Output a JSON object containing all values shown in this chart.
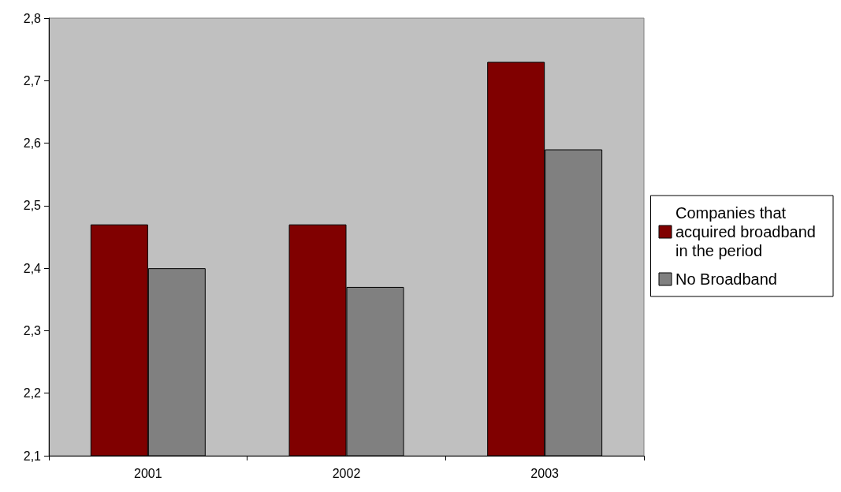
{
  "chart_data": {
    "type": "bar",
    "categories": [
      "2001",
      "2002",
      "2003"
    ],
    "series": [
      {
        "name": "Companies that acquired broadband in the period",
        "color": "#800000",
        "values": [
          2.47,
          2.47,
          2.73
        ]
      },
      {
        "name": "No Broadband",
        "color": "#808080",
        "values": [
          2.4,
          2.37,
          2.59
        ]
      }
    ],
    "ylim": [
      2.1,
      2.8
    ],
    "yticks": [
      {
        "value": 2.1,
        "label": "2,1"
      },
      {
        "value": 2.2,
        "label": "2,2"
      },
      {
        "value": 2.3,
        "label": "2,3"
      },
      {
        "value": 2.4,
        "label": "2,4"
      },
      {
        "value": 2.5,
        "label": "2,5"
      },
      {
        "value": 2.6,
        "label": "2,6"
      },
      {
        "value": 2.7,
        "label": "2,7"
      },
      {
        "value": 2.8,
        "label": "2,8"
      }
    ],
    "grid": false,
    "legend": "right"
  }
}
